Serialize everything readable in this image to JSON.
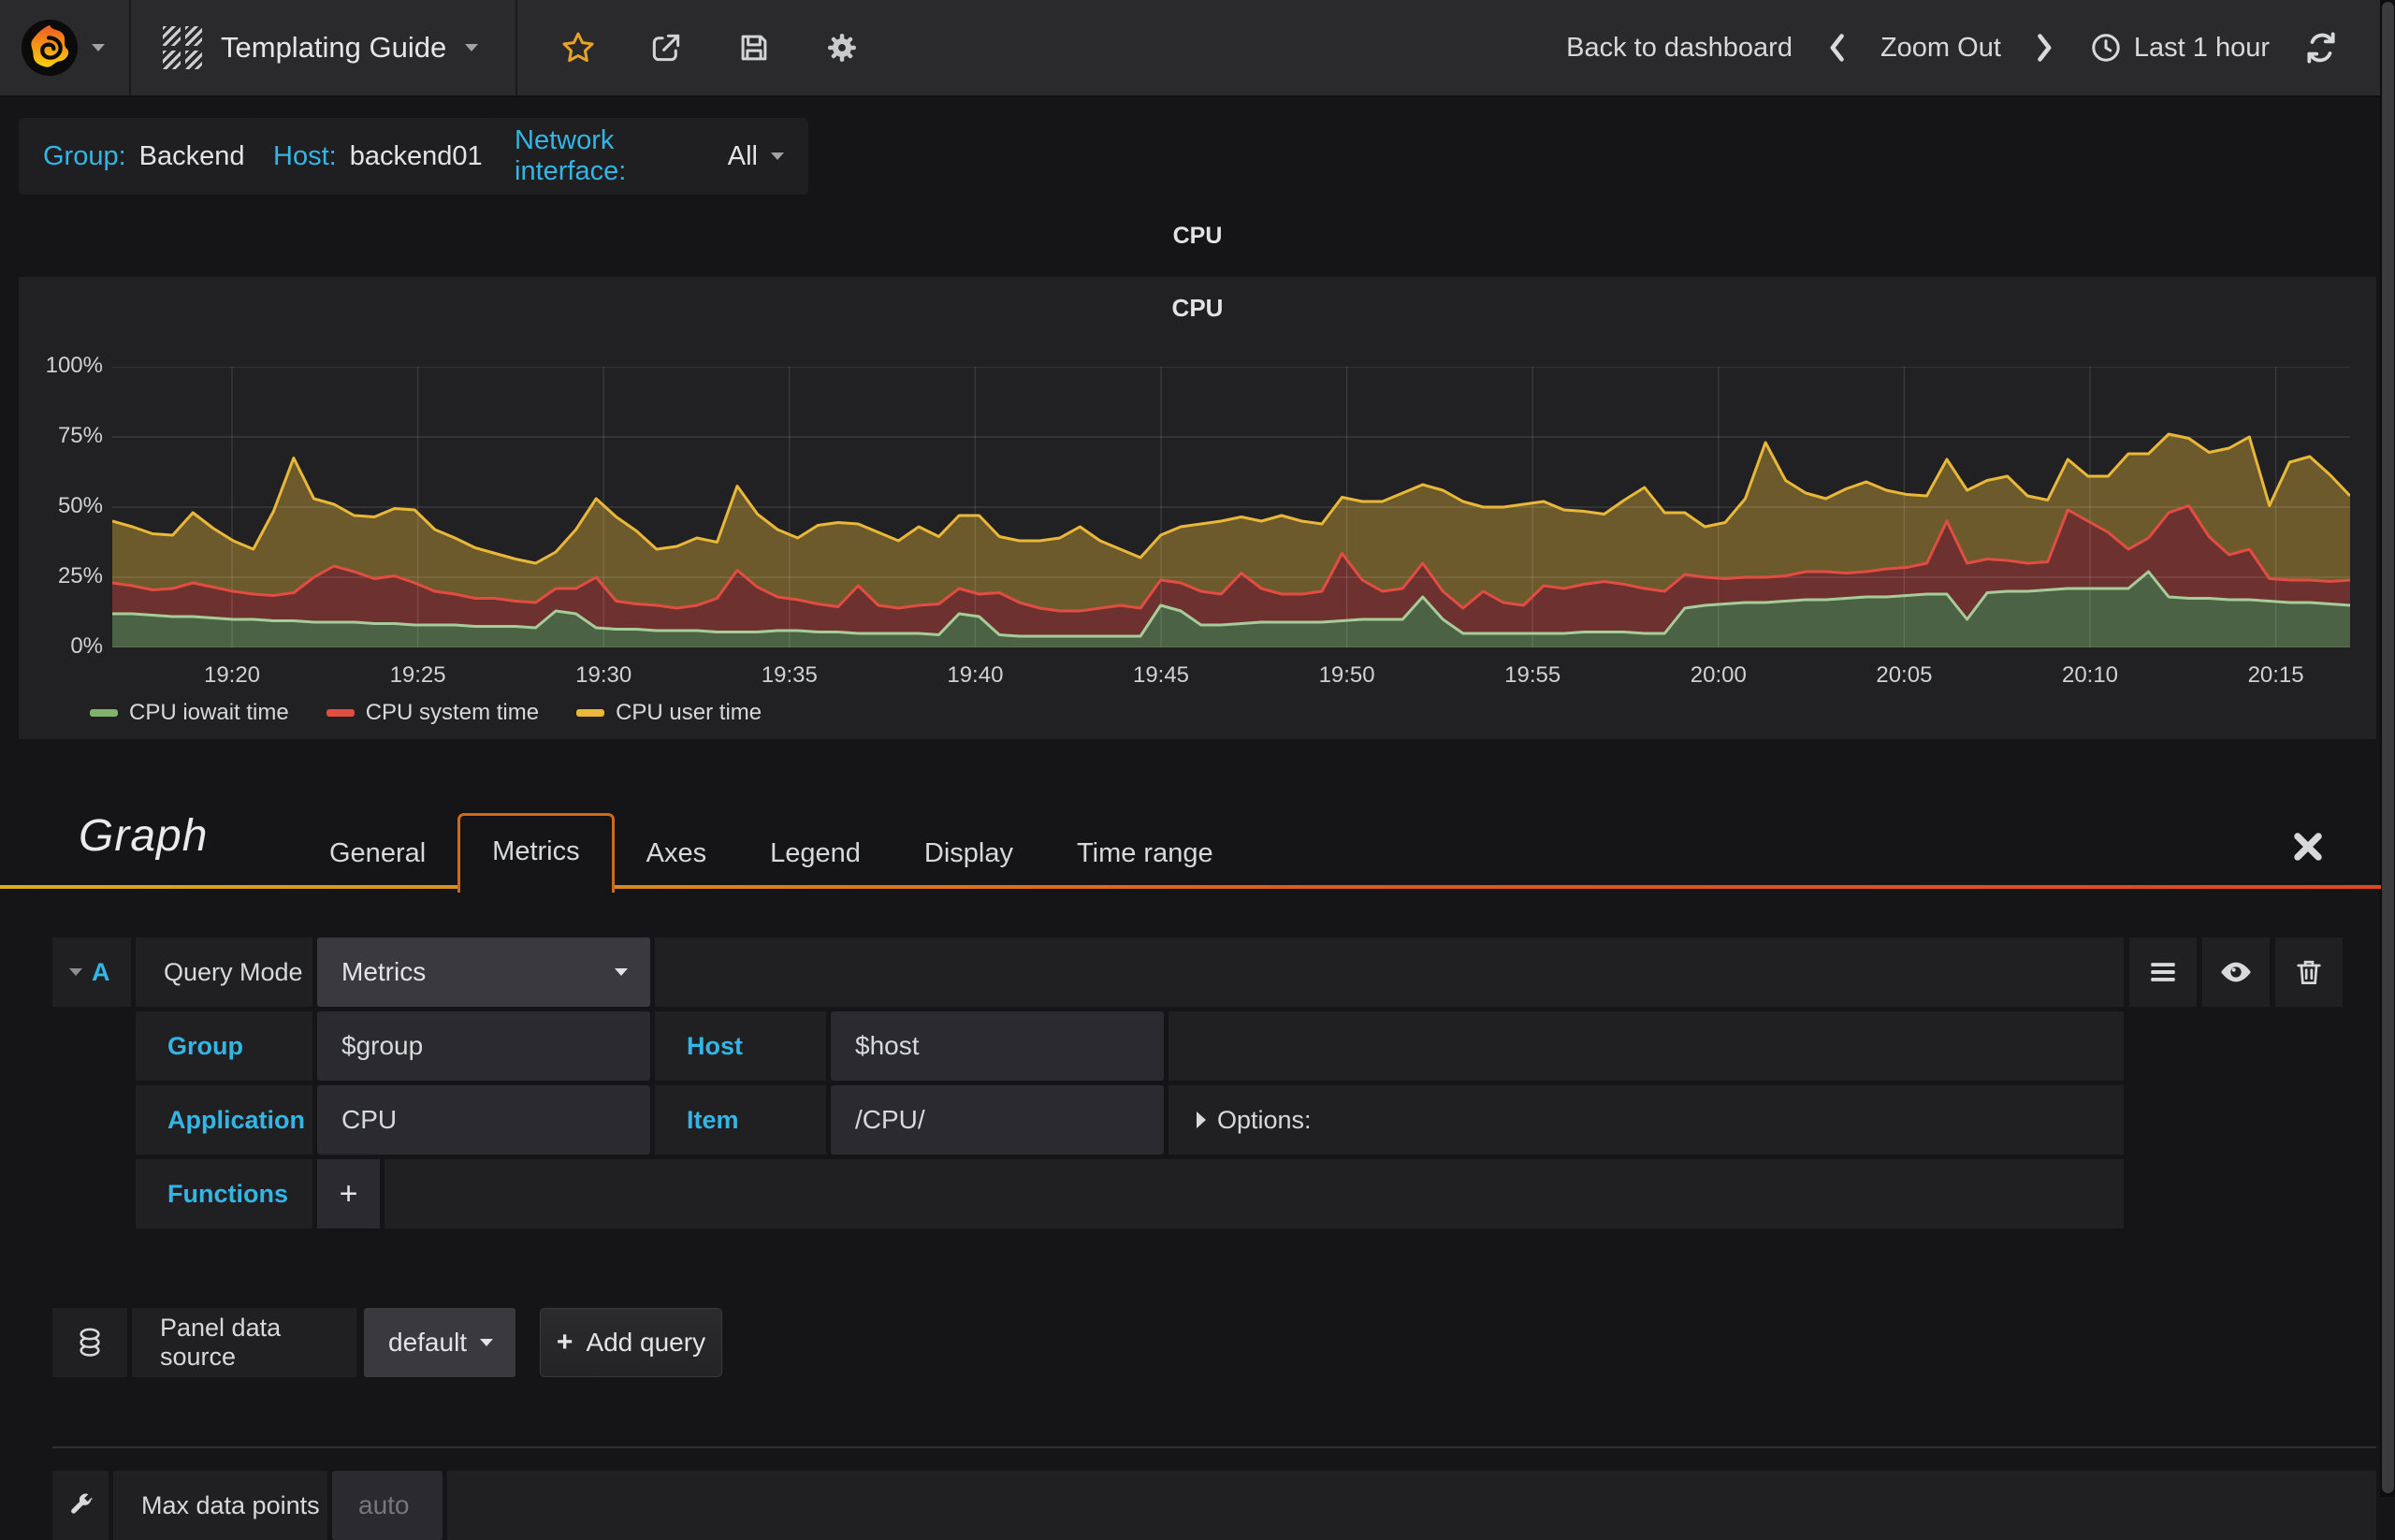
{
  "navbar": {
    "dashboard_title": "Templating Guide",
    "back_to_dashboard": "Back to dashboard",
    "zoom_out": "Zoom Out",
    "time_range": "Last 1 hour"
  },
  "variables": [
    {
      "label": "Group:",
      "value": "Backend"
    },
    {
      "label": "Host:",
      "value": "backend01"
    },
    {
      "label": "Network interface:",
      "value": "All"
    }
  ],
  "panel": {
    "header_title": "CPU"
  },
  "chart_data": {
    "type": "area",
    "stacked": true,
    "title": "CPU",
    "xlabel": "",
    "ylabel": "",
    "ylim": [
      0,
      100
    ],
    "y_ticks": [
      "0%",
      "25%",
      "50%",
      "75%",
      "100%"
    ],
    "x_ticks": [
      "19:20",
      "19:25",
      "19:30",
      "19:35",
      "19:40",
      "19:45",
      "19:50",
      "19:55",
      "20:00",
      "20:05",
      "20:10",
      "20:15"
    ],
    "grid": true,
    "legend_position": "bottom",
    "series": [
      {
        "name": "CPU iowait time",
        "color": "#7eb26d",
        "fill": "rgba(126,178,109,0.45)",
        "values": [
          12,
          12,
          11.5,
          11,
          11,
          10.5,
          10,
          10,
          9.5,
          9.5,
          9,
          9,
          9,
          8.5,
          8.5,
          8,
          8,
          8,
          7.5,
          7.5,
          7.5,
          7,
          13,
          12,
          7,
          6.5,
          6.5,
          6,
          6,
          6,
          5.5,
          5.5,
          5.5,
          6,
          6,
          5.5,
          5.5,
          5,
          5,
          5,
          5,
          4.5,
          12,
          11,
          4.5,
          4,
          4,
          4,
          4,
          4,
          4,
          4,
          15,
          13,
          8,
          8,
          8.5,
          9,
          9,
          9,
          9,
          9.5,
          10,
          10,
          10,
          18,
          10,
          5,
          5,
          5,
          5,
          5,
          5,
          5.5,
          5.5,
          5.5,
          5,
          5,
          14,
          15,
          15.5,
          16,
          16,
          16.5,
          17,
          17,
          17.5,
          18,
          18,
          18.5,
          19,
          19,
          10,
          19.5,
          20,
          20,
          20.5,
          21,
          21,
          21,
          21,
          27,
          18,
          17.5,
          17.5,
          17,
          17,
          16.5,
          16,
          16,
          15.5,
          15
        ]
      },
      {
        "name": "CPU system time",
        "color": "#e24d42",
        "fill": "rgba(226,77,66,0.40)",
        "values": [
          11,
          10,
          9,
          10,
          12,
          11,
          10,
          9,
          9,
          10,
          16,
          20,
          18,
          16,
          17,
          15,
          12,
          11,
          10,
          10,
          9,
          9,
          8,
          9,
          18,
          10,
          9,
          9,
          8,
          9,
          12,
          22,
          16,
          12,
          11,
          10,
          9,
          17,
          10,
          9,
          10,
          11,
          9,
          8,
          15,
          12,
          10,
          9,
          9,
          10,
          11,
          10,
          9,
          10,
          12,
          11,
          18,
          12,
          10,
          10,
          11,
          24,
          14,
          10,
          11,
          12,
          10,
          9,
          15,
          11,
          10,
          17,
          16,
          17,
          18,
          17,
          16,
          15,
          12,
          10,
          9,
          9,
          9,
          9,
          10,
          10,
          9,
          9,
          10,
          10,
          11,
          26,
          20,
          12,
          11,
          10,
          10,
          28,
          24,
          20,
          14,
          12,
          30,
          33,
          22,
          16,
          18,
          8,
          8,
          8,
          8,
          9
        ]
      },
      {
        "name": "CPU user time",
        "color": "#eab839",
        "fill": "rgba(234,184,57,0.38)",
        "values": [
          22,
          21,
          20,
          19,
          25,
          21,
          18,
          16,
          30,
          48,
          28,
          22,
          20,
          22,
          24,
          26,
          22,
          20,
          18,
          16,
          15,
          14,
          13,
          21,
          28,
          30,
          26,
          20,
          22,
          24,
          20,
          30,
          26,
          24,
          22,
          28,
          30,
          22,
          26,
          24,
          28,
          24,
          26,
          28,
          20,
          22,
          24,
          26,
          30,
          24,
          20,
          18,
          16,
          20,
          24,
          26,
          20,
          24,
          28,
          26,
          24,
          20,
          28,
          32,
          34,
          28,
          36,
          38,
          30,
          34,
          36,
          30,
          28,
          26,
          24,
          30,
          36,
          28,
          22,
          18,
          20,
          28,
          48,
          34,
          28,
          26,
          30,
          32,
          28,
          26,
          24,
          22,
          26,
          28,
          30,
          24,
          22,
          18,
          16,
          20,
          34,
          30,
          28,
          24,
          30,
          38,
          40,
          26,
          42,
          44,
          38,
          30
        ]
      }
    ]
  },
  "editor": {
    "panel_type": "Graph",
    "tabs": [
      "General",
      "Metrics",
      "Axes",
      "Legend",
      "Display",
      "Time range"
    ],
    "active_tab": "Metrics",
    "query": {
      "ref": "A",
      "query_mode_label": "Query Mode",
      "query_mode_value": "Metrics",
      "group_label": "Group",
      "group_value": "$group",
      "host_label": "Host",
      "host_value": "$host",
      "application_label": "Application",
      "application_value": "CPU",
      "item_label": "Item",
      "item_value": "/CPU/",
      "options_label": "Options:",
      "functions_label": "Functions",
      "add_function_label": "+"
    },
    "datasource": {
      "label": "Panel data source",
      "value": "default",
      "add_query": "Add query",
      "add_query_plus": "+"
    },
    "max_data_points": {
      "label": "Max data points",
      "placeholder": "auto"
    }
  },
  "colors": {
    "accent_cyan": "#33b5e5",
    "accent_orange": "#cf6a1d",
    "star_orange": "#e8a225",
    "panel_bg": "#212124",
    "navbar_bg": "#2a2a2c"
  }
}
